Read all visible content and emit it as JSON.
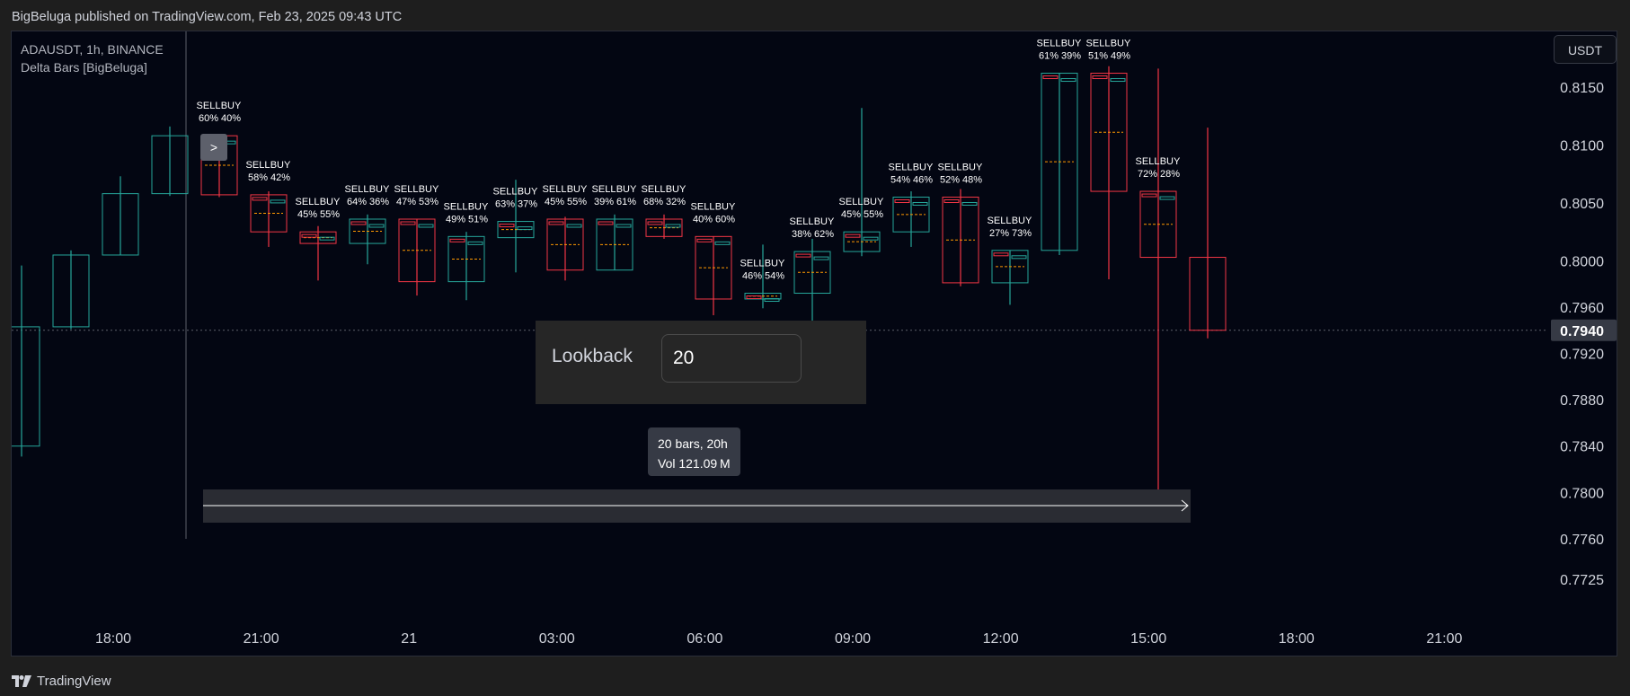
{
  "header": {
    "publish_text": "BigBeluga published on TradingView.com, Feb 23, 2025 09:43 UTC"
  },
  "legend": {
    "symbol_line": "ADAUSDT, 1h, BINANCE",
    "indicator_line": "Delta Bars [BigBeluga]"
  },
  "currency_button": "USDT",
  "lookback": {
    "label": "Lookback",
    "value": "20"
  },
  "measure_tooltip": {
    "line1": "20 bars, 20h",
    "line2": "Vol 121.09 M"
  },
  "footer": {
    "brand_name": "TradingView",
    "icon": "tradingview-logo-icon"
  },
  "colors": {
    "background": "#030612",
    "bull": "#26a69a",
    "bear": "#f23645",
    "delta_line": "#ff9800",
    "text": "#d1d4dc",
    "price_label_bg": "#363a45"
  },
  "chart_data": {
    "type": "candlestick",
    "symbol": "ADAUSDT",
    "interval": "1h",
    "exchange": "BINANCE",
    "x_ticks": [
      "18:00",
      "21:00",
      "21",
      "03:00",
      "06:00",
      "09:00",
      "12:00",
      "15:00",
      "18:00",
      "21:00"
    ],
    "y_ticks": [
      "0.8150",
      "0.8100",
      "0.8050",
      "0.8000",
      "0.7960",
      "0.7920",
      "0.7880",
      "0.7840",
      "0.7800",
      "0.7760",
      "0.7725"
    ],
    "current_price": "0.7940",
    "ylim": [
      0.7708,
      0.8195
    ],
    "grid": false,
    "candles": [
      {
        "t": "17:00",
        "o": 0.784,
        "h": 0.7996,
        "l": 0.7831,
        "c": 0.7943
      },
      {
        "t": "18:00",
        "o": 0.7943,
        "h": 0.8009,
        "l": 0.7941,
        "c": 0.8005
      },
      {
        "t": "19:00",
        "o": 0.8005,
        "h": 0.8073,
        "l": 0.8005,
        "c": 0.8058
      },
      {
        "t": "20:00",
        "o": 0.8058,
        "h": 0.8116,
        "l": 0.8056,
        "c": 0.8108
      },
      {
        "t": "21:00",
        "o": 0.8108,
        "h": 0.8108,
        "l": 0.8055,
        "c": 0.8057,
        "sell": "60%",
        "buy": "40%"
      },
      {
        "t": "22:00",
        "o": 0.8057,
        "h": 0.806,
        "l": 0.8012,
        "c": 0.8025,
        "sell": "58%",
        "buy": "42%"
      },
      {
        "t": "23:00",
        "o": 0.8025,
        "h": 0.803,
        "l": 0.7983,
        "c": 0.8015,
        "sell": "45%",
        "buy": "55%"
      },
      {
        "t": "00:00",
        "o": 0.8015,
        "h": 0.804,
        "l": 0.7997,
        "c": 0.8036,
        "sell": "64%",
        "buy": "36%"
      },
      {
        "t": "01:00",
        "o": 0.8036,
        "h": 0.8036,
        "l": 0.797,
        "c": 0.7982,
        "sell": "47%",
        "buy": "53%"
      },
      {
        "t": "02:00",
        "o": 0.7982,
        "h": 0.8025,
        "l": 0.7966,
        "c": 0.8021,
        "sell": "49%",
        "buy": "51%"
      },
      {
        "t": "03:00",
        "o": 0.802,
        "h": 0.807,
        "l": 0.799,
        "c": 0.8034,
        "sell": "63%",
        "buy": "37%"
      },
      {
        "t": "04:00",
        "o": 0.8036,
        "h": 0.8038,
        "l": 0.7983,
        "c": 0.7992,
        "sell": "45%",
        "buy": "55%"
      },
      {
        "t": "05:00",
        "o": 0.7992,
        "h": 0.804,
        "l": 0.7992,
        "c": 0.8036,
        "sell": "39%",
        "buy": "61%"
      },
      {
        "t": "06:00",
        "o": 0.8036,
        "h": 0.804,
        "l": 0.8019,
        "c": 0.8021,
        "sell": "68%",
        "buy": "32%"
      },
      {
        "t": "07:00",
        "o": 0.8021,
        "h": 0.8021,
        "l": 0.7953,
        "c": 0.7967,
        "sell": "40%",
        "buy": "60%"
      },
      {
        "t": "08:00",
        "o": 0.7967,
        "h": 0.8014,
        "l": 0.7959,
        "c": 0.7972,
        "sell": "46%",
        "buy": "54%"
      },
      {
        "t": "09:00",
        "o": 0.7972,
        "h": 0.8019,
        "l": 0.7944,
        "c": 0.8008,
        "sell": "38%",
        "buy": "62%"
      },
      {
        "t": "10:00",
        "o": 0.8008,
        "h": 0.8132,
        "l": 0.8004,
        "c": 0.8025,
        "sell": "45%",
        "buy": "55%"
      },
      {
        "t": "11:00",
        "o": 0.8025,
        "h": 0.806,
        "l": 0.8012,
        "c": 0.8055,
        "sell": "54%",
        "buy": "46%"
      },
      {
        "t": "12:00",
        "o": 0.8055,
        "h": 0.8062,
        "l": 0.7978,
        "c": 0.7981,
        "sell": "52%",
        "buy": "48%"
      },
      {
        "t": "13:00",
        "o": 0.7981,
        "h": 0.8009,
        "l": 0.7962,
        "c": 0.8009,
        "sell": "27%",
        "buy": "73%"
      },
      {
        "t": "14:00",
        "o": 0.8009,
        "h": 0.8162,
        "l": 0.8005,
        "c": 0.8162,
        "sell": "61%",
        "buy": "39%"
      },
      {
        "t": "15:00",
        "o": 0.8162,
        "h": 0.8168,
        "l": 0.7984,
        "c": 0.806,
        "sell": "51%",
        "buy": "49%"
      },
      {
        "t": "16:00",
        "o": 0.806,
        "h": 0.8166,
        "l": 0.7794,
        "c": 0.8003,
        "sell": "72%",
        "buy": "28%"
      },
      {
        "t": "17:00",
        "o": 0.8003,
        "h": 0.8115,
        "l": 0.7933,
        "c": 0.794
      }
    ]
  }
}
